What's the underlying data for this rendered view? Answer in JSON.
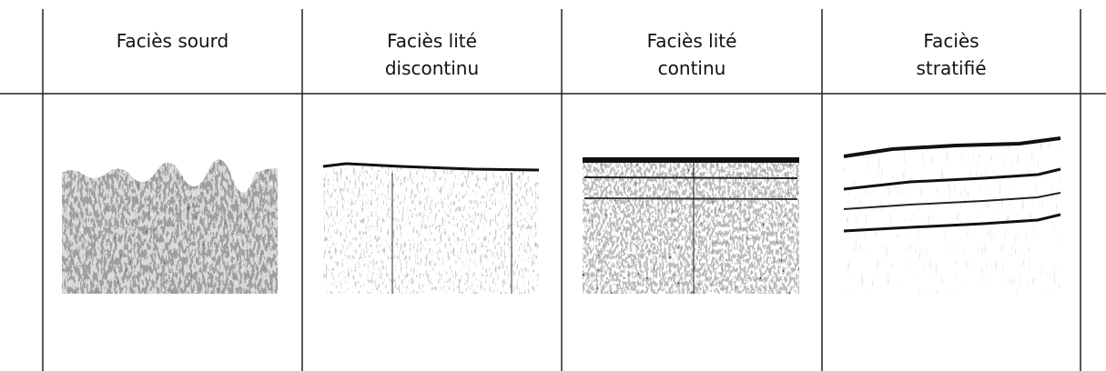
{
  "columns": [
    {
      "title": [
        "Faciès sourd"
      ]
    },
    {
      "title": [
        "Faciès lité",
        "discontinu"
      ]
    },
    {
      "title": [
        "Faciès lité",
        "continu"
      ]
    },
    {
      "title": [
        "Faciès",
        "stratifié"
      ]
    }
  ]
}
